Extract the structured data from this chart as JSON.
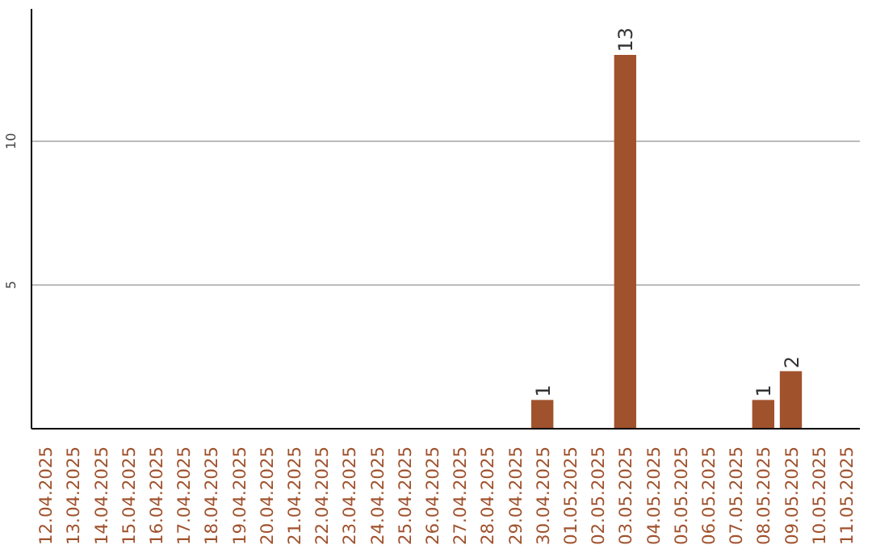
{
  "chart_data": {
    "type": "bar",
    "categories": [
      "12.04.2025",
      "13.04.2025",
      "14.04.2025",
      "15.04.2025",
      "16.04.2025",
      "17.04.2025",
      "18.04.2025",
      "19.04.2025",
      "20.04.2025",
      "21.04.2025",
      "22.04.2025",
      "23.04.2025",
      "24.04.2025",
      "25.04.2025",
      "26.04.2025",
      "27.04.2025",
      "28.04.2025",
      "29.04.2025",
      "30.04.2025",
      "01.05.2025",
      "02.05.2025",
      "03.05.2025",
      "04.05.2025",
      "05.05.2025",
      "06.05.2025",
      "07.05.2025",
      "08.05.2025",
      "09.05.2025",
      "10.05.2025",
      "11.05.2025"
    ],
    "values": [
      0,
      0,
      0,
      0,
      0,
      0,
      0,
      0,
      0,
      0,
      0,
      0,
      0,
      0,
      0,
      0,
      0,
      0,
      1,
      0,
      0,
      13,
      0,
      0,
      0,
      0,
      1,
      2,
      0,
      0
    ],
    "value_labels": [
      null,
      null,
      null,
      null,
      null,
      null,
      null,
      null,
      null,
      null,
      null,
      null,
      null,
      null,
      null,
      null,
      null,
      null,
      "1",
      null,
      null,
      "13",
      null,
      null,
      null,
      null,
      "1",
      "2",
      null,
      null
    ],
    "color": "#a0522d",
    "ylim": [
      0,
      14.6
    ],
    "yticks": [
      5,
      10
    ],
    "grid": "y"
  }
}
